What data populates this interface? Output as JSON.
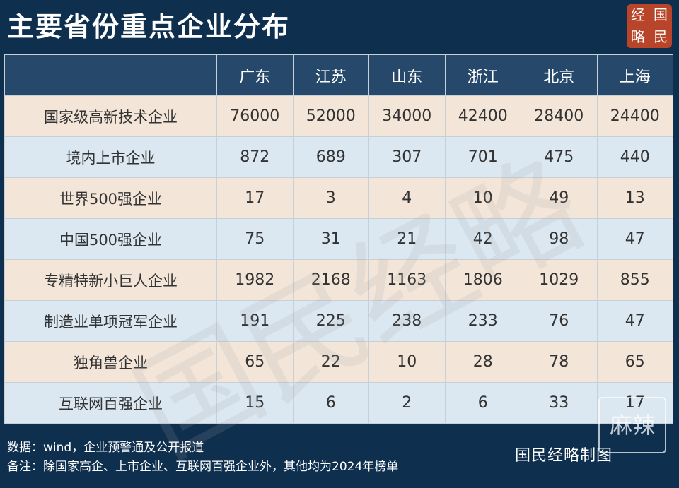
{
  "title": "主要省份重点企业分布",
  "logo": {
    "chars": [
      "经",
      "国",
      "略",
      "民"
    ]
  },
  "watermark": "国民经略",
  "table": {
    "columns": [
      "广东",
      "江苏",
      "山东",
      "浙江",
      "北京",
      "上海"
    ],
    "rows": [
      {
        "label": "国家级高新技术企业",
        "values": [
          "76000",
          "52000",
          "34000",
          "42400",
          "28400",
          "24400"
        ]
      },
      {
        "label": "境内上市企业",
        "values": [
          "872",
          "689",
          "307",
          "701",
          "475",
          "440"
        ]
      },
      {
        "label": "世界500强企业",
        "values": [
          "17",
          "3",
          "4",
          "10",
          "49",
          "13"
        ]
      },
      {
        "label": "中国500强企业",
        "values": [
          "75",
          "31",
          "21",
          "42",
          "98",
          "47"
        ]
      },
      {
        "label": "专精特新小巨人企业",
        "values": [
          "1982",
          "2168",
          "1163",
          "1806",
          "1029",
          "855"
        ]
      },
      {
        "label": "制造业单项冠军企业",
        "values": [
          "191",
          "225",
          "238",
          "233",
          "76",
          "47"
        ]
      },
      {
        "label": "独角兽企业",
        "values": [
          "65",
          "22",
          "10",
          "28",
          "78",
          "65"
        ]
      },
      {
        "label": "互联网百强企业",
        "values": [
          "15",
          "6",
          "2",
          "6",
          "33",
          "17"
        ]
      }
    ]
  },
  "footer": {
    "source": "数据：wind，企业预警通及公开报道",
    "note": "备注：除国家高企、上市企业、互联网百强企业外，其他均为2024年榜单"
  },
  "brand": "国民经略制图",
  "stamp": "麻辣"
}
